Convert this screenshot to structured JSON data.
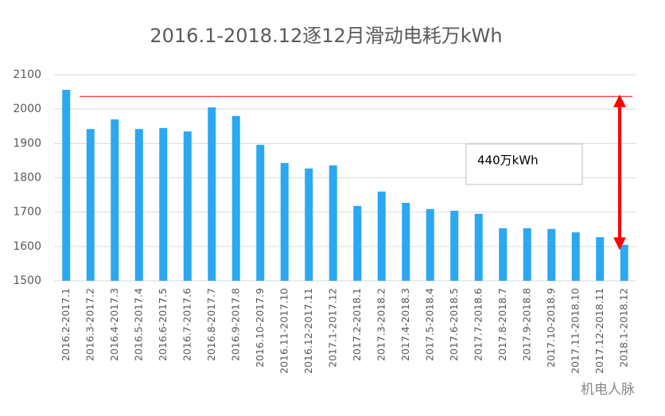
{
  "chart_data": {
    "type": "bar",
    "title": "2016.1-2018.12逐12月滑动电耗万kWh",
    "categories": [
      "2016.2-2017.1",
      "2016.3-2017.2",
      "2016.4-2017.3",
      "2016.5-2017.4",
      "2016.6-2017.5",
      "2016.7-2017.6",
      "2016.8-2017.7",
      "2016.9-2017.8",
      "2016.10-2017.9",
      "2016.11-2017.10",
      "2016.12-2017.11",
      "2017.1-2017.12",
      "2017.2-2018.1",
      "2017.3-2018.2",
      "2017.4-2018.3",
      "2017.5-2018.4",
      "2017.6-2018.5",
      "2017.7-2018.6",
      "2017.8-2018.7",
      "2017.9-2018.8",
      "2017.10-2018.9",
      "2017.11-2018.10",
      "2017.12-2018.11",
      "2018.1-2018.12"
    ],
    "values": [
      2056,
      1942,
      1970,
      1942,
      1945,
      1935,
      2005,
      1980,
      1896,
      1843,
      1827,
      1836,
      1718,
      1760,
      1727,
      1709,
      1704,
      1695,
      1653,
      1653,
      1651,
      1641,
      1627,
      1605
    ],
    "color": "#2aa8f2",
    "ylim": [
      1500,
      2100
    ],
    "yticks": [
      1500,
      1600,
      1700,
      1800,
      1900,
      2000,
      2100
    ],
    "grid": true,
    "reference_line": {
      "value": 2037,
      "color": "#ff0000"
    },
    "arrow": {
      "from": 2024,
      "to": 1608,
      "color": "#ff0000"
    },
    "annotation": "440万kWh",
    "watermark": "机电人脉"
  }
}
